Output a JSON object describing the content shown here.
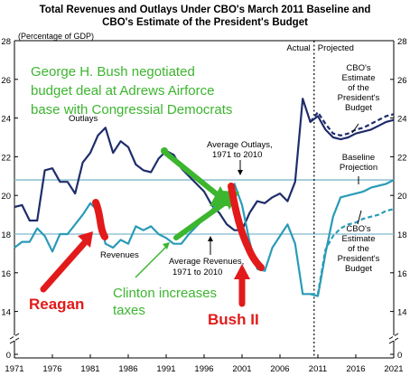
{
  "chart_data": {
    "type": "line",
    "title": [
      "Total Revenues and Outlays Under CBO's March 2011 Baseline and",
      "CBO's Estimate of the President's Budget"
    ],
    "ylabel": "(Percentage of GDP)",
    "ylim": [
      0,
      28
    ],
    "yticks": [
      0,
      14,
      16,
      18,
      20,
      22,
      24,
      26,
      28
    ],
    "xlim": [
      1971,
      2021
    ],
    "xticks": [
      1971,
      1976,
      1981,
      1986,
      1991,
      1996,
      2001,
      2006,
      2011,
      2016,
      2021
    ],
    "axis_break": true,
    "grid": false,
    "averages": [
      {
        "name": "Average Outlays, 1971 to 2010",
        "label_lines": [
          "Average Outlays,",
          "1971 to 2010"
        ],
        "value": 20.8
      },
      {
        "name": "Average Revenues, 1971 to 2010",
        "label_lines": [
          "Average Revenues,",
          "1971 to 2010"
        ],
        "value": 18.0
      }
    ],
    "divider": {
      "x": 2010.5,
      "left_label": "Actual",
      "right_label": "Projected"
    },
    "series": [
      {
        "name": "Outlays",
        "color": "#1f2d6b",
        "style": "solid",
        "x": [
          1971,
          1972,
          1973,
          1974,
          1975,
          1976,
          1977,
          1978,
          1979,
          1980,
          1981,
          1982,
          1983,
          1984,
          1985,
          1986,
          1987,
          1988,
          1989,
          1990,
          1991,
          1992,
          1993,
          1994,
          1995,
          1996,
          1997,
          1998,
          1999,
          2000,
          2001,
          2002,
          2003,
          2004,
          2005,
          2006,
          2007,
          2008,
          2009,
          2010,
          2011,
          2012,
          2013,
          2014,
          2015,
          2016,
          2017,
          2018,
          2019,
          2020,
          2021
        ],
        "values": [
          19.4,
          19.5,
          18.7,
          18.7,
          21.3,
          21.4,
          20.7,
          20.7,
          20.1,
          21.7,
          22.2,
          23.1,
          23.5,
          22.2,
          22.8,
          22.5,
          21.6,
          21.3,
          21.2,
          21.9,
          22.3,
          22.1,
          21.4,
          21.0,
          20.6,
          20.2,
          19.5,
          19.1,
          18.5,
          18.2,
          18.2,
          19.1,
          19.7,
          19.6,
          19.9,
          20.1,
          19.7,
          20.7,
          25.0,
          23.8,
          24.1,
          23.4,
          23.0,
          22.9,
          23.0,
          23.2,
          23.3,
          23.4,
          23.6,
          23.8,
          23.9
        ]
      },
      {
        "name": "President's Budget (Outlays)",
        "color": "#1f2d6b",
        "style": "dashed",
        "x": [
          2010,
          2011,
          2012,
          2013,
          2014,
          2015,
          2016,
          2017,
          2018,
          2019,
          2020,
          2021
        ],
        "values": [
          23.8,
          24.3,
          23.7,
          23.2,
          23.1,
          23.2,
          23.4,
          23.5,
          23.7,
          23.9,
          24.1,
          24.2
        ]
      },
      {
        "name": "Revenues",
        "color": "#2a9bb8",
        "style": "solid",
        "x": [
          1971,
          1972,
          1973,
          1974,
          1975,
          1976,
          1977,
          1978,
          1979,
          1980,
          1981,
          1982,
          1983,
          1984,
          1985,
          1986,
          1987,
          1988,
          1989,
          1990,
          1991,
          1992,
          1993,
          1994,
          1995,
          1996,
          1997,
          1998,
          1999,
          2000,
          2001,
          2002,
          2003,
          2004,
          2005,
          2006,
          2007,
          2008,
          2009,
          2010,
          2011,
          2012,
          2013,
          2014,
          2015,
          2016,
          2017,
          2018,
          2019,
          2020,
          2021
        ],
        "values": [
          17.3,
          17.6,
          17.6,
          18.3,
          17.9,
          17.1,
          18.0,
          18.0,
          18.5,
          19.0,
          19.6,
          19.2,
          17.5,
          17.3,
          17.7,
          17.5,
          18.4,
          18.2,
          18.4,
          18.0,
          17.8,
          17.5,
          17.5,
          18.0,
          18.4,
          18.8,
          19.2,
          19.9,
          19.8,
          20.6,
          19.5,
          17.6,
          16.2,
          16.1,
          17.3,
          17.9,
          18.5,
          17.5,
          14.9,
          14.9,
          14.8,
          17.0,
          18.9,
          19.9,
          20.0,
          20.1,
          20.2,
          20.4,
          20.5,
          20.6,
          20.8
        ]
      },
      {
        "name": "President's Budget (Revenues)",
        "color": "#2a9bb8",
        "style": "dashed",
        "x": [
          2010,
          2011,
          2012,
          2013,
          2014,
          2015,
          2016,
          2017,
          2018,
          2019,
          2020,
          2021
        ],
        "values": [
          14.9,
          14.9,
          17.2,
          17.9,
          18.3,
          18.5,
          18.6,
          18.8,
          18.9,
          19.0,
          19.2,
          19.3
        ]
      }
    ],
    "series_labels": {
      "outlays": "Outlays",
      "revenues": "Revenues",
      "baseline": [
        "Baseline",
        "Projection"
      ],
      "cbo_outlays": [
        "CBO's",
        "Estimate",
        "of the",
        "President's",
        "Budget"
      ],
      "cbo_revenues": [
        "CBO's",
        "Estimate",
        "of the",
        "President's",
        "Budget"
      ]
    },
    "annotations": [
      {
        "name": "bush-sr-note",
        "color": "#3cb52f",
        "lines": [
          "George H. Bush negotiated",
          "budget deal at Adrews Airforce",
          "base with Congressial Democrats"
        ]
      },
      {
        "name": "clinton-note",
        "color": "#3cb52f",
        "lines": [
          "Clinton increases",
          "taxes"
        ]
      },
      {
        "name": "reagan-note",
        "color": "#e21a1a",
        "lines": [
          "Reagan"
        ]
      },
      {
        "name": "bush-ii-note",
        "color": "#e21a1a",
        "lines": [
          "Bush II"
        ]
      }
    ]
  }
}
